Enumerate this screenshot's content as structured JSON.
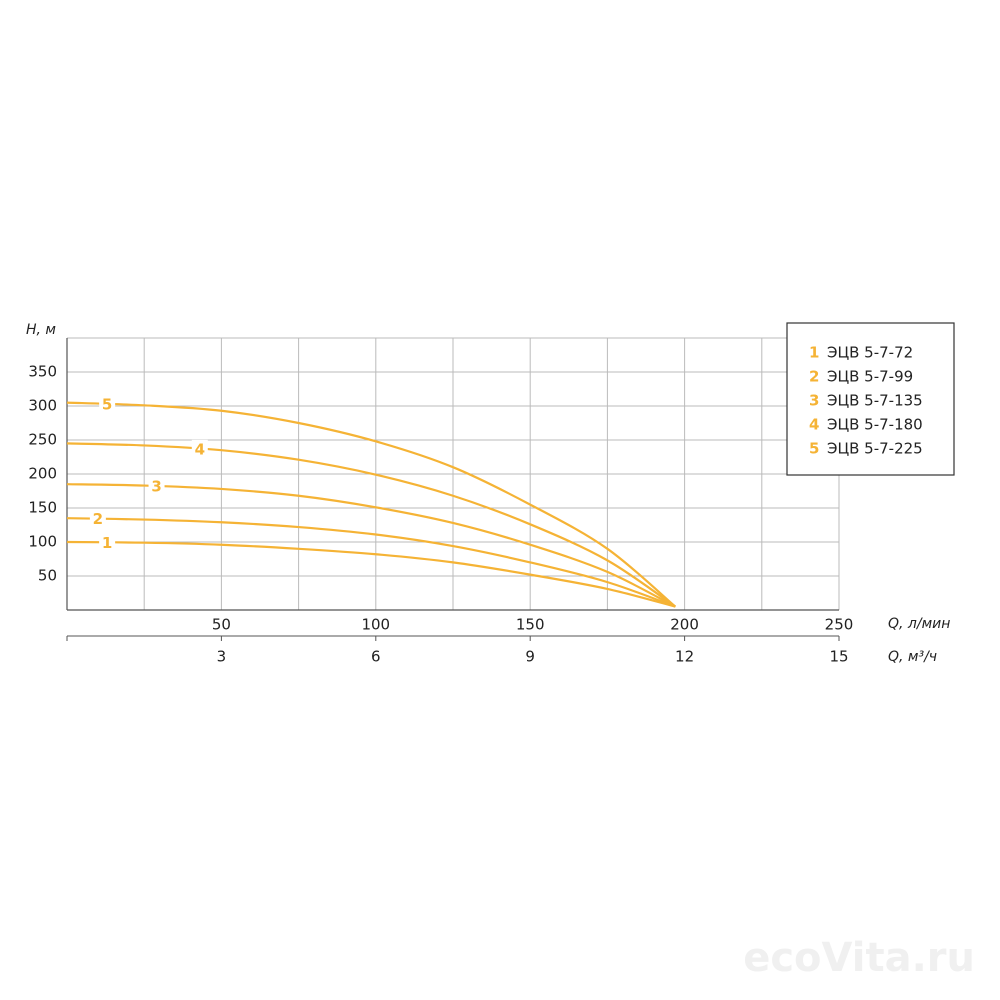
{
  "chart_data": {
    "type": "line",
    "y_label": "H, м",
    "x_label": "Q, л/мин",
    "x2_label": "Q, м³/ч",
    "x": [
      0,
      25,
      50,
      75,
      100,
      125,
      150,
      175,
      197
    ],
    "xlim": [
      0,
      250
    ],
    "xticks": [
      50,
      100,
      150,
      200,
      250
    ],
    "x2lim": [
      0,
      15
    ],
    "x2ticks": [
      3,
      6,
      9,
      12,
      15
    ],
    "ylim": [
      0,
      400
    ],
    "yticks": [
      50,
      100,
      150,
      200,
      250,
      300,
      350
    ],
    "grid": true,
    "legend": "top-right",
    "series": [
      {
        "label": "1",
        "name": "ЭЦВ 5-7-72",
        "color": "#f5b335",
        "values": [
          100,
          99,
          96,
          90,
          82,
          70,
          52,
          31,
          5
        ]
      },
      {
        "label": "2",
        "name": "ЭЦВ 5-7-99",
        "color": "#f5b335",
        "values": [
          135,
          133,
          129,
          122,
          111,
          94,
          70,
          41,
          5
        ]
      },
      {
        "label": "3",
        "name": "ЭЦВ 5-7-135",
        "color": "#f5b335",
        "values": [
          185,
          183,
          178,
          168,
          151,
          128,
          96,
          56,
          5
        ]
      },
      {
        "label": "4",
        "name": "ЭЦВ 5-7-180",
        "color": "#f5b335",
        "values": [
          245,
          242,
          235,
          221,
          199,
          168,
          126,
          73,
          5
        ]
      },
      {
        "label": "5",
        "name": "ЭЦВ 5-7-225",
        "color": "#f5b335",
        "values": [
          305,
          301,
          293,
          275,
          248,
          210,
          155,
          90,
          5
        ]
      }
    ],
    "watermark": "ecoVita.ru"
  }
}
